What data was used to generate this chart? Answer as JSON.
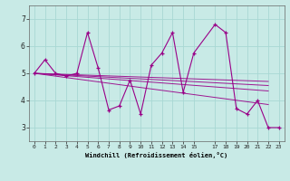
{
  "xlabel": "Windchill (Refroidissement éolien,°C)",
  "bg_color": "#c8eae6",
  "grid_color": "#a8d8d4",
  "line_color": "#990088",
  "xlim": [
    -0.5,
    23.5
  ],
  "ylim": [
    2.5,
    7.5
  ],
  "yticks": [
    3,
    4,
    5,
    6,
    7
  ],
  "xticks": [
    0,
    1,
    2,
    3,
    4,
    5,
    6,
    7,
    8,
    9,
    10,
    11,
    12,
    13,
    14,
    15,
    17,
    18,
    19,
    20,
    21,
    22,
    23
  ],
  "main_x": [
    0,
    1,
    2,
    3,
    4,
    5,
    6,
    7,
    8,
    9,
    10,
    11,
    12,
    13,
    14,
    15,
    17,
    18,
    19,
    20,
    21,
    22,
    23
  ],
  "main_y": [
    5.0,
    5.5,
    5.0,
    4.9,
    5.0,
    6.5,
    5.2,
    3.65,
    3.8,
    4.75,
    3.5,
    5.3,
    5.75,
    6.5,
    4.3,
    5.75,
    6.8,
    6.5,
    3.7,
    3.5,
    4.0,
    3.0,
    3.0
  ],
  "straight_lines": [
    {
      "x": [
        0,
        22
      ],
      "y": [
        5.0,
        4.35
      ]
    },
    {
      "x": [
        0,
        22
      ],
      "y": [
        5.0,
        4.55
      ]
    },
    {
      "x": [
        0,
        22
      ],
      "y": [
        5.0,
        4.7
      ]
    },
    {
      "x": [
        0,
        22
      ],
      "y": [
        5.0,
        3.85
      ]
    }
  ]
}
